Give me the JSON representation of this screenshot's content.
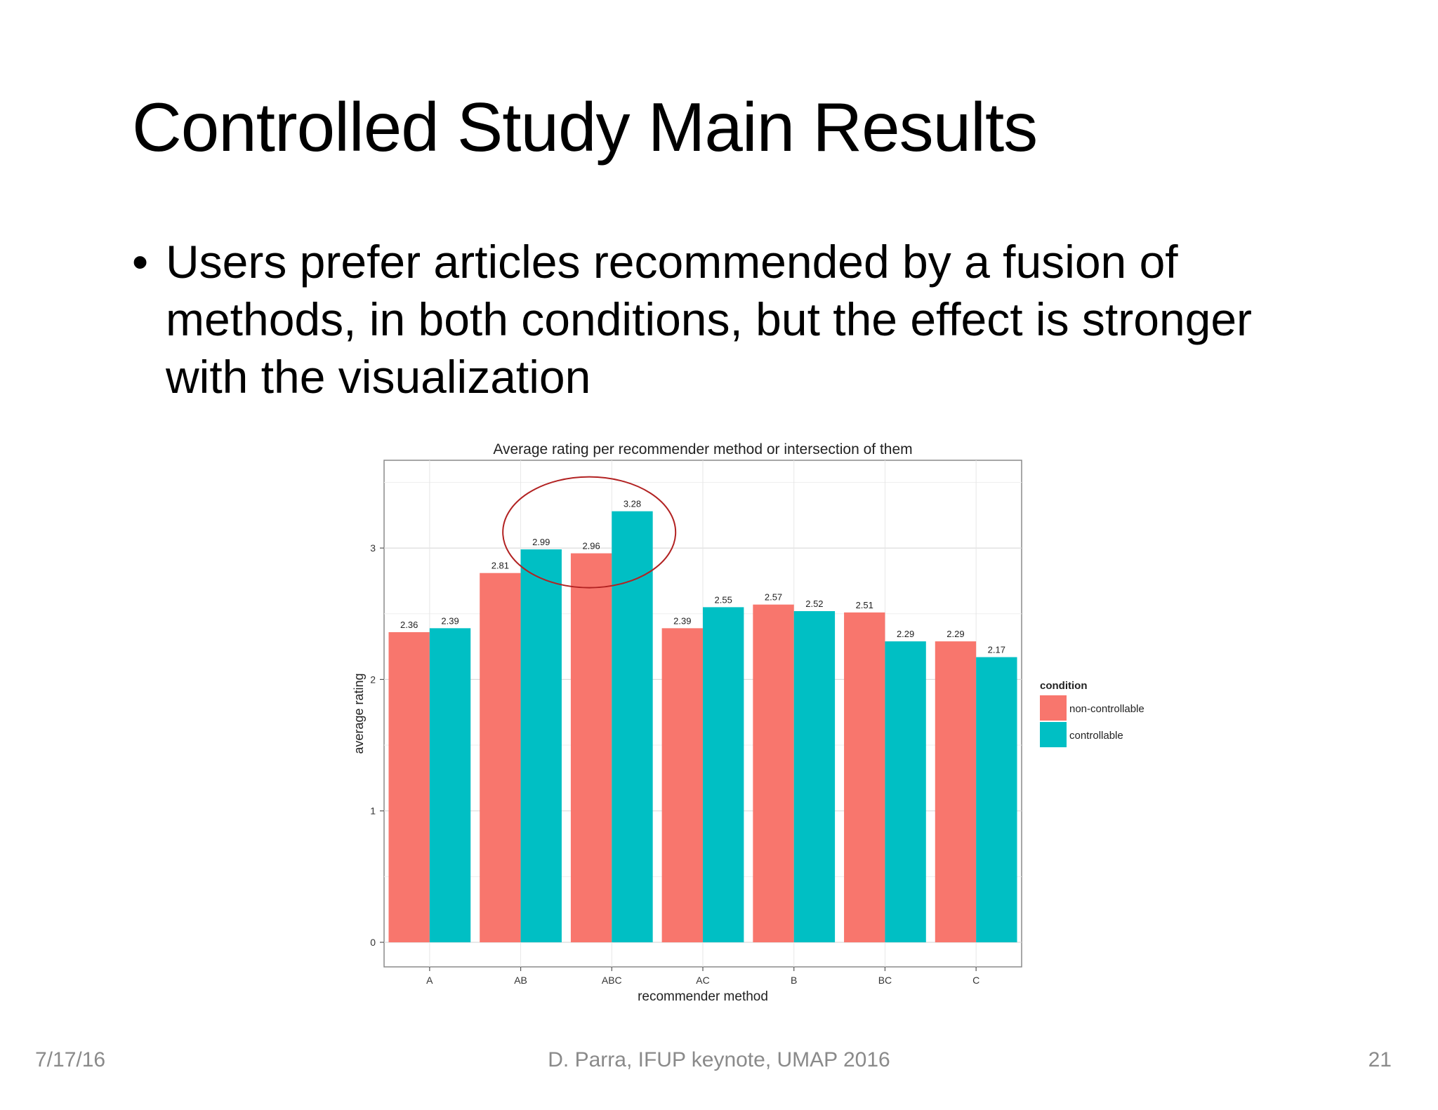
{
  "slide": {
    "title": "Controlled Study Main Results",
    "bullets": [
      "Users prefer articles recommended by a fusion of methods, in both conditions, but the effect is stronger with the visualization"
    ],
    "bullet_symbol": "•",
    "footer": {
      "date": "7/17/16",
      "center": "D. Parra, IFUP keynote, UMAP 2016",
      "page": "21"
    }
  },
  "chart_data": {
    "type": "bar",
    "title": "Average rating per recommender method or intersection of them",
    "xlabel": "recommender method",
    "ylabel": "average rating",
    "categories": [
      "A",
      "AB",
      "ABC",
      "AC",
      "B",
      "BC",
      "C"
    ],
    "series": [
      {
        "name": "non-controllable",
        "color": "#F8766D",
        "values": [
          2.36,
          2.81,
          2.96,
          2.39,
          2.57,
          2.51,
          2.29
        ],
        "labels": [
          "2.36",
          "2.81",
          "2.96",
          "2.39",
          "2.57",
          "2.51",
          "2.29"
        ]
      },
      {
        "name": "controllable",
        "color": "#00BFC4",
        "values": [
          2.39,
          2.99,
          3.28,
          2.55,
          2.52,
          2.29,
          2.17
        ],
        "labels": [
          "2.39",
          "2.99",
          "3.28",
          "2.55",
          "2.52",
          "2.29",
          "2.17"
        ]
      }
    ],
    "yticks": [
      0,
      1,
      2,
      3
    ],
    "ytick_labels": [
      "0",
      "1",
      "2",
      "3"
    ],
    "ylim": [
      0,
      3.5
    ],
    "grid": true,
    "legend": {
      "title": "condition",
      "placement": "right"
    },
    "annotation": {
      "shape": "ellipse",
      "highlight": "ABC",
      "color": "#B22222"
    }
  }
}
